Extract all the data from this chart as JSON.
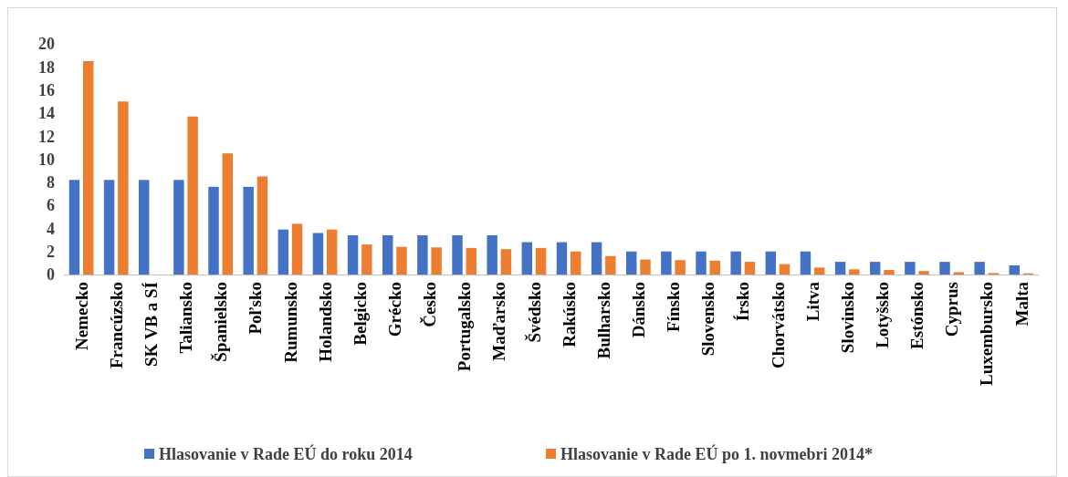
{
  "chart_data": {
    "type": "bar",
    "categories": [
      "Nemecko",
      "Francúzsko",
      "SK VB a SÍ",
      "Taliansko",
      "Španielsko",
      "Poľsko",
      "Rumunsko",
      "Holandsko",
      "Belgicko",
      "Grécko",
      "Česko",
      "Portugalsko",
      "Maďarsko",
      "Švédsko",
      "Rakúsko",
      "Bulharsko",
      "Dánsko",
      "Fínsko",
      "Slovensko",
      "Írsko",
      "Chorvátsko",
      "Litva",
      "Slovinsko",
      "Lotyšsko",
      "Estónsko",
      "Cyprus",
      "Luxembursko",
      "Malta"
    ],
    "series": [
      {
        "name": "Hlasovanie v Rade EÚ do roku 2014",
        "color": "#4472c4",
        "values": [
          8.2,
          8.2,
          8.2,
          8.2,
          7.6,
          7.6,
          3.9,
          3.6,
          3.4,
          3.4,
          3.4,
          3.4,
          3.4,
          2.8,
          2.8,
          2.8,
          2.0,
          2.0,
          2.0,
          2.0,
          2.0,
          2.0,
          1.1,
          1.1,
          1.1,
          1.1,
          1.1,
          0.8
        ]
      },
      {
        "name": "Hlasovanie v Rade EÚ po 1. novmebri 2014*",
        "color": "#ed7d31",
        "values": [
          18.5,
          15.0,
          null,
          13.7,
          10.5,
          8.5,
          4.4,
          3.9,
          2.6,
          2.4,
          2.35,
          2.3,
          2.2,
          2.3,
          2.0,
          1.6,
          1.3,
          1.25,
          1.2,
          1.1,
          0.9,
          0.6,
          0.45,
          0.4,
          0.3,
          0.2,
          0.13,
          0.1
        ]
      }
    ],
    "ylim": [
      0,
      20
    ],
    "yticks": [
      0,
      2,
      4,
      6,
      8,
      10,
      12,
      14,
      16,
      18,
      20
    ],
    "grid": false,
    "legend": "bottom"
  }
}
